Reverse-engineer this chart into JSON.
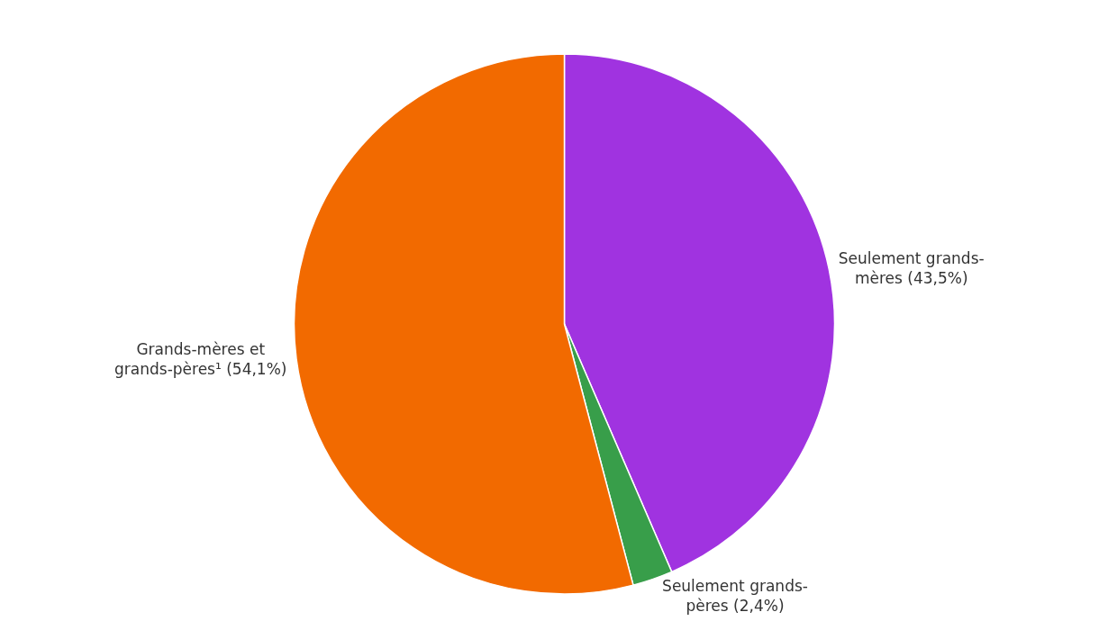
{
  "chart_data": {
    "type": "pie",
    "categories": [
      "Seulement grands-mères",
      "Seulement grands-pères",
      "Grands-mères et grands-pères¹"
    ],
    "values": [
      43.5,
      2.4,
      54.1
    ],
    "value_labels": [
      "(43,5%)",
      "(2,4%)",
      "(54,1%)"
    ],
    "colors": [
      "#a033e0",
      "#389e4a",
      "#f26a00"
    ],
    "legend": false
  }
}
